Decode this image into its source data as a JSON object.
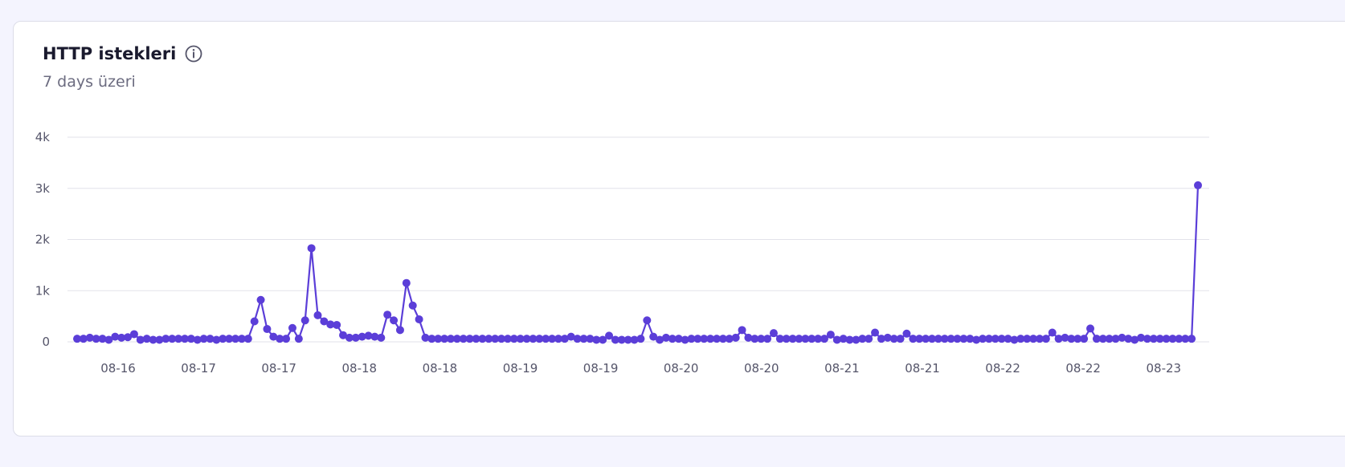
{
  "card": {
    "title": "HTTP istekleri",
    "subtitle": "7 days üzeri"
  },
  "icons": {
    "info": "info-circle-icon"
  },
  "colors": {
    "line": "#5b3ed8",
    "grid": "#e2e2ea",
    "axis_text": "#55556a",
    "background": "#f4f4fe",
    "card": "#ffffff"
  },
  "chart_data": {
    "type": "line",
    "title": "HTTP istekleri",
    "subtitle": "7 days üzeri",
    "xlabel": "",
    "ylabel": "",
    "ylim": [
      0,
      4000
    ],
    "y_ticks": [
      0,
      1000,
      2000,
      3000,
      4000
    ],
    "y_tick_labels": [
      "0",
      "1k",
      "2k",
      "3k",
      "4k"
    ],
    "x_tick_labels": [
      "08-16",
      "08-17",
      "08-17",
      "08-18",
      "08-18",
      "08-19",
      "08-19",
      "08-20",
      "08-20",
      "08-21",
      "08-21",
      "08-22",
      "08-22",
      "08-23"
    ],
    "grid": true,
    "legend": "none",
    "series": [
      {
        "values": [
          60,
          60,
          80,
          60,
          60,
          40,
          100,
          80,
          90,
          150,
          40,
          60,
          40,
          40,
          60,
          60,
          60,
          60,
          60,
          40,
          60,
          60,
          40,
          60,
          60,
          60,
          60,
          60,
          400,
          820,
          250,
          100,
          60,
          60,
          270,
          60,
          420,
          1830,
          520,
          400,
          340,
          330,
          130,
          80,
          80,
          100,
          120,
          100,
          80,
          530,
          420,
          230,
          1150,
          710,
          440,
          80,
          60,
          60,
          60,
          60,
          60,
          60,
          60,
          60,
          60,
          60,
          60,
          60,
          60,
          60,
          60,
          60,
          60,
          60,
          60,
          60,
          60,
          60,
          100,
          60,
          60,
          60,
          40,
          40,
          120,
          40,
          40,
          40,
          40,
          60,
          420,
          100,
          40,
          80,
          60,
          60,
          40,
          60,
          60,
          60,
          60,
          60,
          60,
          60,
          80,
          230,
          80,
          60,
          60,
          60,
          170,
          60,
          60,
          60,
          60,
          60,
          60,
          60,
          60,
          140,
          40,
          60,
          40,
          40,
          60,
          60,
          180,
          60,
          80,
          60,
          60,
          160,
          60,
          60,
          60,
          60,
          60,
          60,
          60,
          60,
          60,
          60,
          40,
          60,
          60,
          60,
          60,
          60,
          40,
          60,
          60,
          60,
          60,
          60,
          180,
          60,
          80,
          60,
          60,
          60,
          260,
          60,
          60,
          60,
          60,
          80,
          60,
          40,
          80,
          60,
          60,
          60,
          60,
          60,
          60,
          60,
          60,
          3060
        ]
      }
    ]
  }
}
